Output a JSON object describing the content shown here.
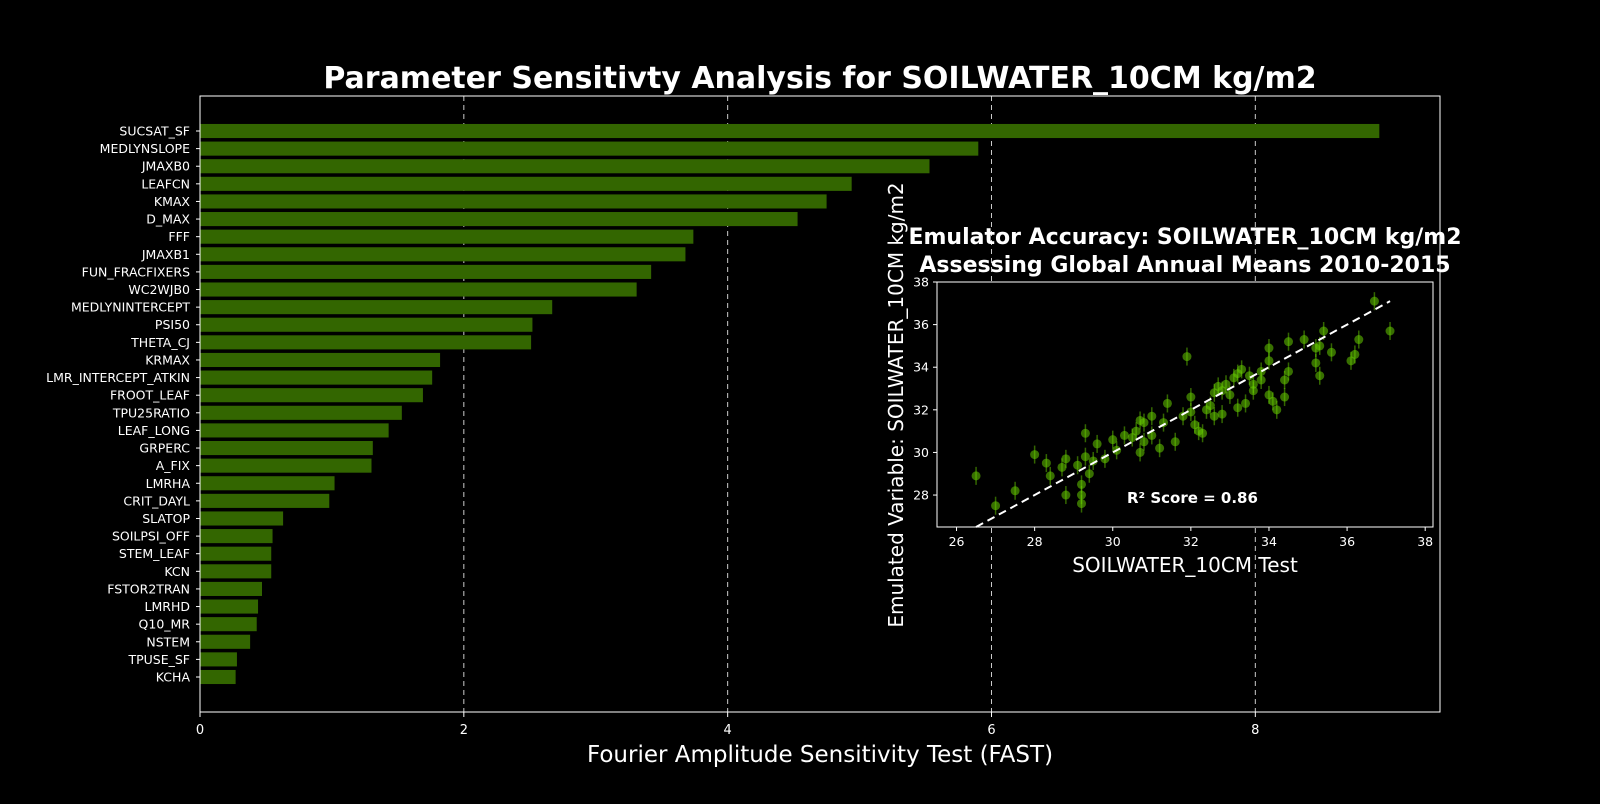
{
  "chart_data": [
    {
      "type": "bar",
      "orientation": "horizontal",
      "title": "Parameter Sensitivty Analysis for SOILWATER_10CM kg/m2",
      "xlabel": "Fourier Amplitude Sensitivity Test (FAST)",
      "ylabel": "",
      "xlim": [
        0,
        9.4
      ],
      "xticks": [
        0,
        2,
        4,
        6,
        8
      ],
      "grid": "x-dashed",
      "bar_color": "#336600",
      "categories": [
        "SUCSAT_SF",
        "MEDLYNSLOPE",
        "JMAXB0",
        "LEAFCN",
        "KMAX",
        "D_MAX",
        "FFF",
        "JMAXB1",
        "FUN_FRACFIXERS",
        "WC2WJB0",
        "MEDLYNINTERCEPT",
        "PSI50",
        "THETA_CJ",
        "KRMAX",
        "LMR_INTERCEPT_ATKIN",
        "FROOT_LEAF",
        "TPU25RATIO",
        "LEAF_LONG",
        "GRPERC",
        "A_FIX",
        "LMRHA",
        "CRIT_DAYL",
        "SLATOP",
        "SOILPSI_OFF",
        "STEM_LEAF",
        "KCN",
        "FSTOR2TRAN",
        "LMRHD",
        "Q10_MR",
        "NSTEM",
        "TPUSE_SF",
        "KCHA"
      ],
      "values": [
        8.94,
        5.9,
        5.53,
        4.94,
        4.75,
        4.53,
        3.74,
        3.68,
        3.42,
        3.31,
        2.67,
        2.52,
        2.51,
        1.82,
        1.76,
        1.69,
        1.53,
        1.43,
        1.31,
        1.3,
        1.02,
        0.98,
        0.63,
        0.55,
        0.54,
        0.54,
        0.47,
        0.44,
        0.43,
        0.38,
        0.28,
        0.27
      ]
    },
    {
      "type": "scatter",
      "title_lines": [
        "Emulator Accuracy: SOILWATER_10CM kg/m2",
        "Assessing Global Annual Means 2010-2015"
      ],
      "xlabel": "SOILWATER_10CM Test",
      "ylabel": "Emulated Variable: SOILWATER_10CM kg/m2",
      "xlim": [
        25.5,
        38.2
      ],
      "ylim": [
        26.5,
        38
      ],
      "xticks": [
        26,
        28,
        30,
        32,
        34,
        36,
        38
      ],
      "yticks": [
        28,
        30,
        32,
        34,
        36,
        38
      ],
      "point_color": "#66cc00",
      "annotation": "R² Score = 0.86",
      "reference_line": {
        "x": [
          26.5,
          37.1
        ],
        "y": [
          26.5,
          37.1
        ],
        "style": "white-dashed"
      },
      "points": [
        [
          26.5,
          28.9
        ],
        [
          27,
          27.5
        ],
        [
          27.5,
          28.2
        ],
        [
          28,
          29.9
        ],
        [
          28.3,
          29.5
        ],
        [
          28.4,
          28.9
        ],
        [
          28.7,
          29.3
        ],
        [
          28.8,
          29.7
        ],
        [
          28.8,
          28
        ],
        [
          29.1,
          29.4
        ],
        [
          29.2,
          28.5
        ],
        [
          29.2,
          27.6
        ],
        [
          29.2,
          28
        ],
        [
          29.3,
          29.8
        ],
        [
          29.3,
          30.9
        ],
        [
          29.4,
          29
        ],
        [
          29.5,
          29.6
        ],
        [
          29.6,
          30.4
        ],
        [
          29.8,
          29.7
        ],
        [
          30,
          30.6
        ],
        [
          30.1,
          30.1
        ],
        [
          30.3,
          30.8
        ],
        [
          30.5,
          30.7
        ],
        [
          30.6,
          31
        ],
        [
          30.7,
          31.5
        ],
        [
          30.7,
          30
        ],
        [
          30.8,
          31.4
        ],
        [
          30.8,
          30.5
        ],
        [
          31,
          30.8
        ],
        [
          31,
          31.7
        ],
        [
          31.2,
          30.2
        ],
        [
          31.3,
          31.4
        ],
        [
          31.4,
          32.3
        ],
        [
          31.6,
          30.5
        ],
        [
          31.8,
          31.7
        ],
        [
          32,
          31.9
        ],
        [
          32,
          32.6
        ],
        [
          32.1,
          31.3
        ],
        [
          32.2,
          31
        ],
        [
          32.3,
          30.9
        ],
        [
          31.9,
          34.5
        ],
        [
          32.4,
          32
        ],
        [
          32.5,
          32.2
        ],
        [
          32.6,
          31.7
        ],
        [
          32.6,
          32.8
        ],
        [
          32.7,
          33.1
        ],
        [
          32.8,
          31.8
        ],
        [
          32.8,
          32.9
        ],
        [
          32.9,
          33.2
        ],
        [
          33,
          32.7
        ],
        [
          33.1,
          33.5
        ],
        [
          33.2,
          32.1
        ],
        [
          33.2,
          33.7
        ],
        [
          33.3,
          33.9
        ],
        [
          33.4,
          32.3
        ],
        [
          33.5,
          33.6
        ],
        [
          33.6,
          33.2
        ],
        [
          33.6,
          32.9
        ],
        [
          33.8,
          33.8
        ],
        [
          33.8,
          33.4
        ],
        [
          34,
          32.7
        ],
        [
          34,
          34.3
        ],
        [
          34,
          34.9
        ],
        [
          34.1,
          32.4
        ],
        [
          34.2,
          32
        ],
        [
          34.4,
          32.6
        ],
        [
          34.4,
          33.4
        ],
        [
          34.5,
          33.8
        ],
        [
          34.5,
          35.2
        ],
        [
          34.9,
          35.3
        ],
        [
          35.2,
          34.9
        ],
        [
          35.2,
          34.2
        ],
        [
          35.3,
          33.6
        ],
        [
          35.3,
          35
        ],
        [
          35.4,
          35.7
        ],
        [
          35.6,
          34.7
        ],
        [
          36.1,
          34.3
        ],
        [
          36.2,
          34.6
        ],
        [
          36.3,
          35.3
        ],
        [
          36.7,
          37.1
        ],
        [
          37.1,
          35.7
        ]
      ]
    }
  ]
}
